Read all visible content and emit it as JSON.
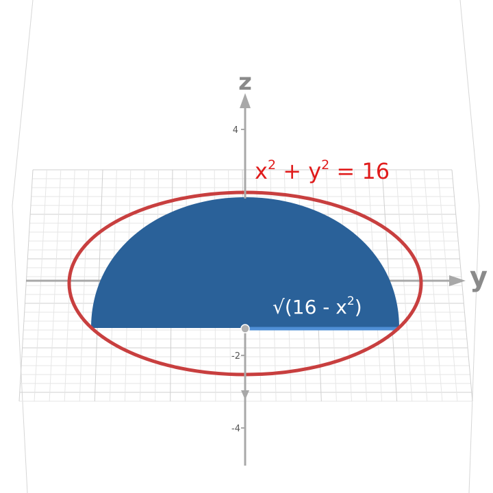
{
  "axes": {
    "x_label": "",
    "y_label": "y",
    "z_label": "z"
  },
  "z_ticks": [
    {
      "label": "4",
      "value": 4
    },
    {
      "label": "-2",
      "value": -2
    },
    {
      "label": "-4",
      "value": -4
    }
  ],
  "equations": {
    "circle": {
      "base": [
        "x",
        " + y",
        " = 16"
      ],
      "sup": [
        "2",
        "2"
      ],
      "color": "#e01b1b"
    },
    "region": {
      "prefix": "√(16 - x",
      "sup": "2",
      "suffix": ")",
      "color": "#ffffff"
    }
  },
  "colors": {
    "region_fill": "#2a6199",
    "circle_stroke": "#c83f3f",
    "edge_line": "#4f8fd6",
    "axis": "#a0a0a0",
    "grid": "#d9d9d9"
  },
  "circle_radius": 4
}
